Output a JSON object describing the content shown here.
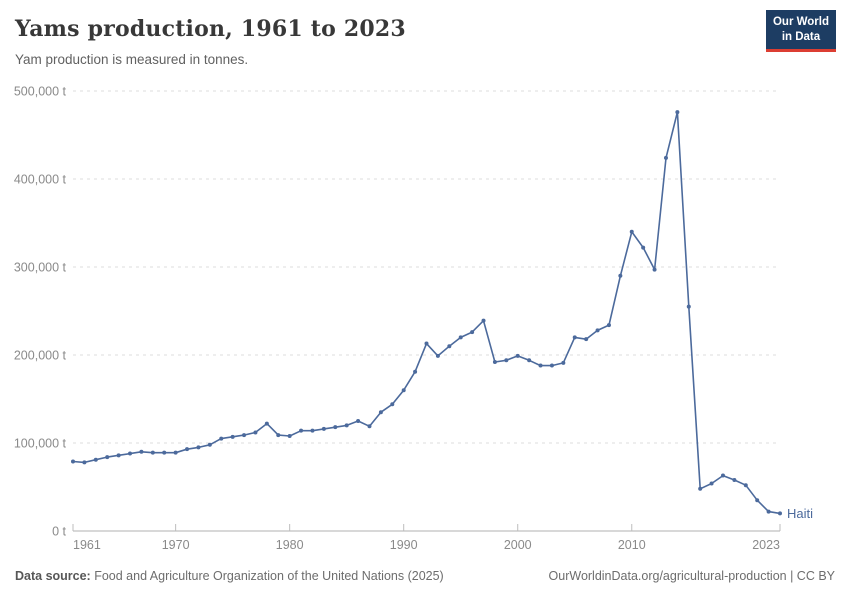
{
  "header": {
    "title": "Yams production, 1961 to 2023",
    "subtitle": "Yam production is measured in tonnes."
  },
  "logo": {
    "line1": "Our World",
    "line2": "in Data",
    "bg_color": "#1d3d63",
    "accent_color": "#dc3e32"
  },
  "chart_data": {
    "type": "line",
    "title": "Yams production, 1961 to 2023",
    "subtitle": "Yam production is measured in tonnes.",
    "unit": "t",
    "xlim": [
      1961,
      2023
    ],
    "ylim": [
      0,
      500000
    ],
    "grid": "dashed-horizontal",
    "legend_position": "end-of-line-label",
    "line_color": "#4c6a9c",
    "x_ticks": [
      {
        "value": 1961,
        "label": "1961",
        "anchor": "start"
      },
      {
        "value": 1970,
        "label": "1970",
        "anchor": "middle"
      },
      {
        "value": 1980,
        "label": "1980",
        "anchor": "middle"
      },
      {
        "value": 1990,
        "label": "1990",
        "anchor": "middle"
      },
      {
        "value": 2000,
        "label": "2000",
        "anchor": "middle"
      },
      {
        "value": 2010,
        "label": "2010",
        "anchor": "middle"
      },
      {
        "value": 2023,
        "label": "2023",
        "anchor": "end"
      }
    ],
    "y_ticks": [
      {
        "value": 0,
        "label": "0 t"
      },
      {
        "value": 100000,
        "label": "100,000 t"
      },
      {
        "value": 200000,
        "label": "200,000 t"
      },
      {
        "value": 300000,
        "label": "300,000 t"
      },
      {
        "value": 400000,
        "label": "400,000 t"
      },
      {
        "value": 500000,
        "label": "500,000 t"
      }
    ],
    "series": [
      {
        "name": "Haiti",
        "color": "#4c6a9c",
        "x": [
          1961,
          1962,
          1963,
          1964,
          1965,
          1966,
          1967,
          1968,
          1969,
          1970,
          1971,
          1972,
          1973,
          1974,
          1975,
          1976,
          1977,
          1978,
          1979,
          1980,
          1981,
          1982,
          1983,
          1984,
          1985,
          1986,
          1987,
          1988,
          1989,
          1990,
          1991,
          1992,
          1993,
          1994,
          1995,
          1996,
          1997,
          1998,
          1999,
          2000,
          2001,
          2002,
          2003,
          2004,
          2005,
          2006,
          2007,
          2008,
          2009,
          2010,
          2011,
          2012,
          2013,
          2014,
          2015,
          2016,
          2017,
          2018,
          2019,
          2020,
          2021,
          2022,
          2023
        ],
        "values": [
          79000,
          78000,
          81000,
          84000,
          86000,
          88000,
          90000,
          89000,
          89000,
          89000,
          93000,
          95000,
          98000,
          105000,
          107000,
          109000,
          112000,
          122000,
          109000,
          108000,
          114000,
          114000,
          116000,
          118000,
          120000,
          125000,
          119000,
          135000,
          144000,
          160000,
          181000,
          213000,
          199000,
          210000,
          220000,
          226000,
          239000,
          192000,
          194000,
          199000,
          194000,
          188000,
          188000,
          191000,
          220000,
          218000,
          228000,
          234000,
          290000,
          340000,
          322000,
          297000,
          424000,
          476000,
          255000,
          48000,
          54000,
          63000,
          58000,
          52000,
          35000,
          22000,
          20000
        ]
      }
    ]
  },
  "footer": {
    "source_label": "Data source:",
    "source_text": " Food and Agriculture Organization of the United Nations (2025)",
    "right_text": "OurWorldinData.org/agricultural-production | CC BY"
  }
}
